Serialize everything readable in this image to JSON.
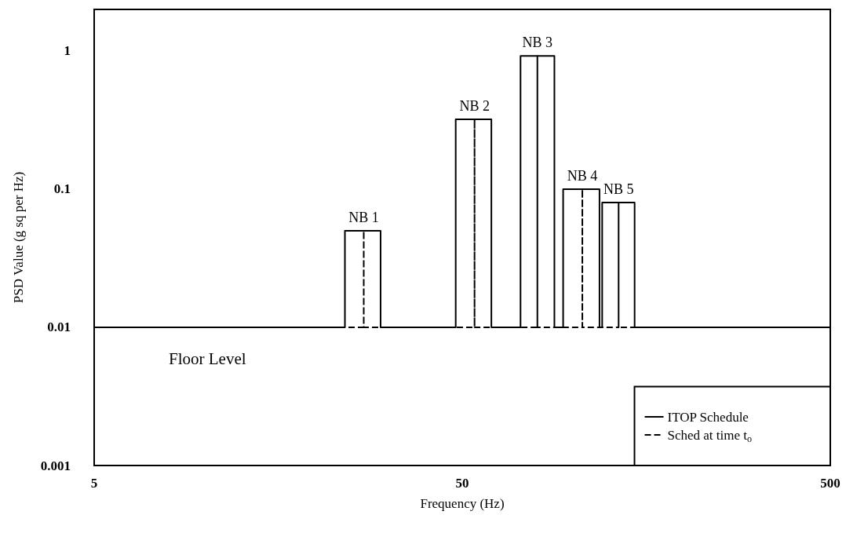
{
  "chart_data": {
    "type": "line",
    "xlabel": "Frequency (Hz)",
    "ylabel": "PSD Value (g sq per Hz)",
    "log": "xy",
    "xlim": [
      5,
      500
    ],
    "xticks": [
      5,
      50,
      500
    ],
    "ylim": [
      0.001,
      2
    ],
    "yticks": [
      0.001,
      0.01,
      0.1,
      1
    ],
    "grid": false,
    "legend": "bottom right",
    "marker": "none",
    "series": [
      {
        "name": "Sched at time t$_{o}$",
        "color": "#000000",
        "line_style": "dashed",
        "x": [
          5,
          27,
          27,
          27,
          54,
          54,
          54,
          80,
          80,
          80,
          106,
          106,
          106,
          133,
          133,
          133,
          500
        ],
        "values": [
          0.01,
          0.01,
          0.05,
          0.01,
          0.01,
          0.32,
          0.01,
          0.01,
          0.92,
          0.01,
          0.01,
          0.1,
          0.01,
          0.01,
          0.08,
          0.01,
          0.01
        ]
      },
      {
        "name": "ITOP Schedule",
        "color": "#000000",
        "line_style": "solid",
        "x": [
          5,
          24,
          24,
          30,
          30,
          48,
          48,
          60,
          60,
          72,
          72,
          89,
          89,
          94,
          94,
          118,
          118,
          120,
          120,
          147,
          147,
          500
        ],
        "values": [
          0.01,
          0.01,
          0.05,
          0.05,
          0.01,
          0.01,
          0.32,
          0.32,
          0.01,
          0.01,
          0.92,
          0.92,
          0.01,
          0.01,
          0.1,
          0.1,
          0.01,
          0.01,
          0.08,
          0.08,
          0.01,
          0.01
        ]
      }
    ],
    "annotations": [
      {
        "text": "NB 1",
        "x": 27,
        "y": 0.05
      },
      {
        "text": "NB 2",
        "x": 54,
        "y": 0.32
      },
      {
        "text": "NB 3",
        "x": 80,
        "y": 0.92
      },
      {
        "text": "NB 4",
        "x": 106,
        "y": 0.1
      },
      {
        "text": "NB 5",
        "x": 133,
        "y": 0.08
      },
      "Floor Level"
    ]
  }
}
